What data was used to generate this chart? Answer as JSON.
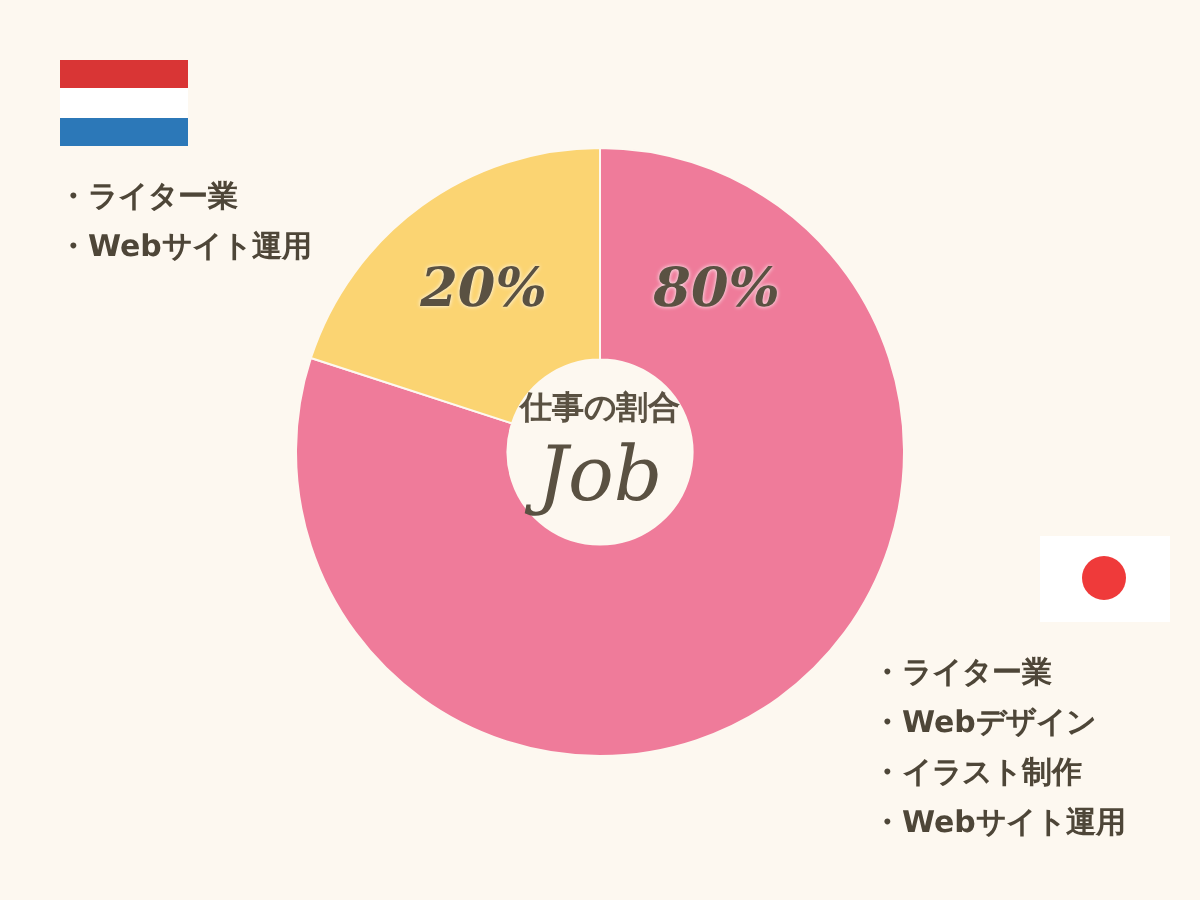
{
  "chart_data": {
    "type": "donut",
    "title": "仕事の割合",
    "subtitle": "Job",
    "categories": [
      null,
      null
    ],
    "values": [
      80,
      20
    ],
    "colors": [
      "#ef7b9a",
      "#fbd472"
    ],
    "value_labels": [
      "80%",
      "20%"
    ],
    "annotations": [
      "・ライター業",
      "・Webサイト運用",
      "・ライター業",
      "・Webデザイン",
      "・イラスト制作",
      "・Webサイト運用"
    ]
  }
}
